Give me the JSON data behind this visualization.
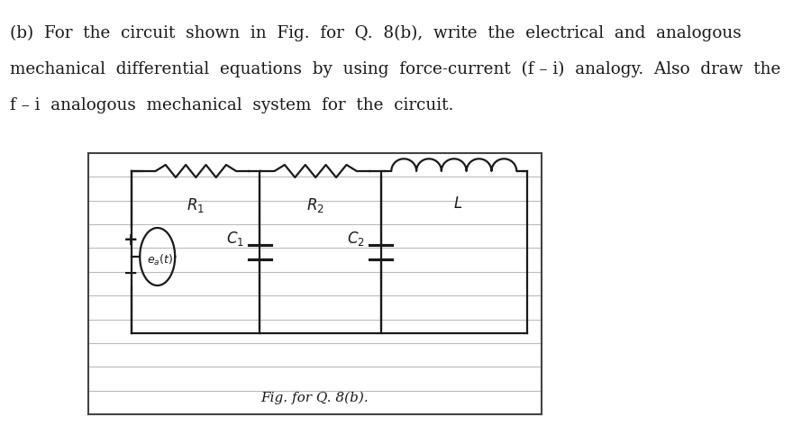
{
  "background_color": "#f5f5f0",
  "page_bg": "#ffffff",
  "text_lines": [
    "(b)  For  the  circuit  shown  in  Fig.  for  Q.  8(b),  write  the  electrical  and  analogous",
    "mechanical  differential  equations  by  using  force-current  (f – i)  analogy.  Also  draw  the",
    "f – i  analogous  mechanical  system  for  the  circuit."
  ],
  "text_color": "#1a1a1a",
  "text_fontsize": 13.2,
  "caption_text": "Fig. for Q. 8(b).",
  "circuit_color": "#1a1a1a",
  "line_color": "#888888",
  "nb_line_color": "#bbbbbb"
}
